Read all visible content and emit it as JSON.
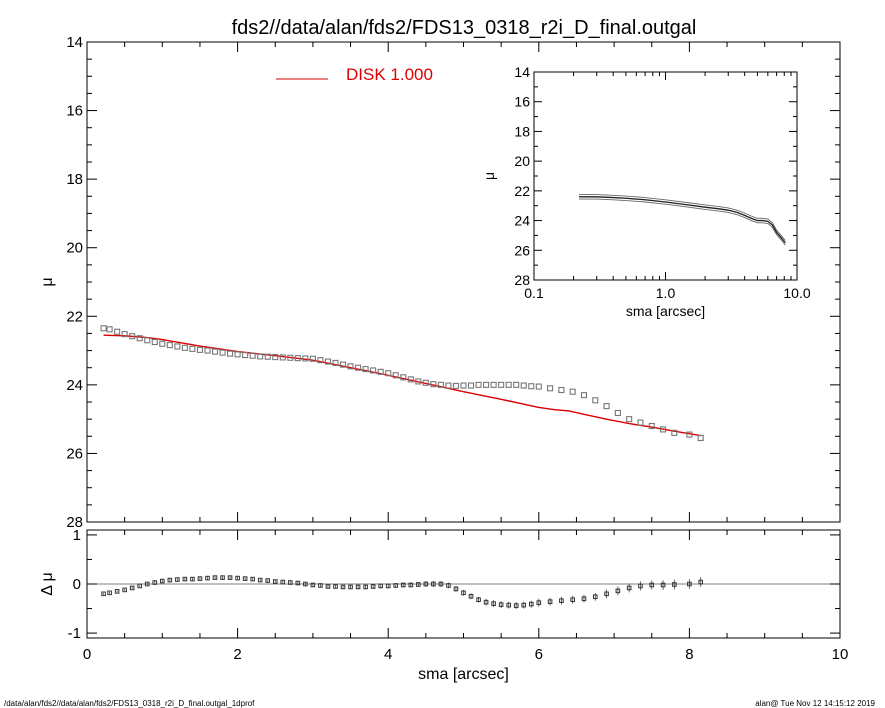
{
  "title": "fds2//data/alan/fds2/FDS13_0318_r2i_D_final.outgal",
  "footer": {
    "left": "/data/alan/fds2//data/alan/fds2/FDS13_0318_r2i_D_final.outgal_1dprof",
    "right": "alan@  Tue Nov 12 14:15:12 2019"
  },
  "colors": {
    "model": "#dd0000",
    "data": "#777777",
    "axes": "#000000"
  },
  "chart_data": [
    {
      "id": "main",
      "type": "scatter",
      "xlabel": "sma [arcsec]",
      "ylabel": "μ",
      "xlim": [
        0,
        10
      ],
      "ylim": [
        28,
        14
      ],
      "y_inverted": true,
      "xticks": [
        "0",
        "2",
        "4",
        "6",
        "8",
        "10"
      ],
      "yticks": [
        "14",
        "16",
        "18",
        "20",
        "22",
        "24",
        "26",
        "28"
      ],
      "legend": {
        "label": "DISK",
        "value": "1.000",
        "placement": "top-center"
      },
      "series": [
        {
          "name": "DISK",
          "style": "line",
          "x": [
            0.22,
            0.5,
            0.8,
            1.0,
            1.5,
            2.0,
            2.5,
            3.0,
            3.5,
            4.0,
            4.5,
            5.0,
            5.5,
            6.0,
            6.2,
            6.4,
            6.6,
            6.9,
            7.2,
            7.5,
            7.8,
            8.15
          ],
          "y": [
            22.55,
            22.57,
            22.62,
            22.68,
            22.87,
            23.03,
            23.15,
            23.28,
            23.5,
            23.72,
            23.96,
            24.2,
            24.42,
            24.66,
            24.72,
            24.76,
            24.86,
            25.0,
            25.13,
            25.23,
            25.35,
            25.48
          ]
        },
        {
          "style": "markers",
          "x": [
            0.22,
            0.3,
            0.4,
            0.5,
            0.6,
            0.7,
            0.8,
            0.9,
            1.0,
            1.1,
            1.2,
            1.3,
            1.4,
            1.5,
            1.6,
            1.7,
            1.8,
            1.9,
            2.0,
            2.1,
            2.2,
            2.3,
            2.4,
            2.5,
            2.6,
            2.7,
            2.8,
            2.9,
            3.0,
            3.1,
            3.2,
            3.3,
            3.4,
            3.5,
            3.6,
            3.7,
            3.8,
            3.9,
            4.0,
            4.1,
            4.2,
            4.3,
            4.4,
            4.5,
            4.6,
            4.7,
            4.8,
            4.9,
            5.0,
            5.1,
            5.2,
            5.3,
            5.4,
            5.5,
            5.6,
            5.7,
            5.8,
            5.9,
            6.0,
            6.15,
            6.3,
            6.45,
            6.6,
            6.75,
            6.9,
            7.05,
            7.2,
            7.35,
            7.5,
            7.65,
            7.8,
            8.0,
            8.15
          ],
          "y": [
            22.35,
            22.38,
            22.45,
            22.52,
            22.58,
            22.64,
            22.7,
            22.75,
            22.8,
            22.84,
            22.88,
            22.92,
            22.95,
            22.98,
            23.0,
            23.03,
            23.06,
            23.09,
            23.11,
            23.13,
            23.15,
            23.17,
            23.18,
            23.19,
            23.2,
            23.21,
            23.22,
            23.23,
            23.24,
            23.28,
            23.32,
            23.36,
            23.41,
            23.46,
            23.5,
            23.54,
            23.58,
            23.62,
            23.66,
            23.72,
            23.78,
            23.84,
            23.9,
            23.94,
            23.98,
            24.0,
            24.02,
            24.03,
            24.02,
            24.02,
            24.0,
            24.0,
            24.0,
            24.0,
            24.0,
            24.0,
            24.02,
            24.04,
            24.05,
            24.1,
            24.15,
            24.2,
            24.3,
            24.45,
            24.62,
            24.82,
            25.0,
            25.1,
            25.2,
            25.3,
            25.4,
            25.45,
            25.55
          ]
        }
      ]
    },
    {
      "id": "residual",
      "type": "scatter",
      "xlabel": "sma [arcsec]",
      "ylabel": "Δ μ",
      "xlim": [
        0,
        10
      ],
      "ylim": [
        -1.1,
        1.1
      ],
      "yticks": [
        "-1",
        "0",
        "1"
      ],
      "series": [
        {
          "style": "markers-errorbars",
          "x": [
            0.22,
            0.3,
            0.4,
            0.5,
            0.6,
            0.7,
            0.8,
            0.9,
            1.0,
            1.1,
            1.2,
            1.3,
            1.4,
            1.5,
            1.6,
            1.7,
            1.8,
            1.9,
            2.0,
            2.1,
            2.2,
            2.3,
            2.4,
            2.5,
            2.6,
            2.7,
            2.8,
            2.9,
            3.0,
            3.1,
            3.2,
            3.3,
            3.4,
            3.5,
            3.6,
            3.7,
            3.8,
            3.9,
            4.0,
            4.1,
            4.2,
            4.3,
            4.4,
            4.5,
            4.6,
            4.7,
            4.8,
            4.9,
            5.0,
            5.1,
            5.2,
            5.3,
            5.4,
            5.5,
            5.6,
            5.7,
            5.8,
            5.9,
            6.0,
            6.15,
            6.3,
            6.45,
            6.6,
            6.75,
            6.9,
            7.05,
            7.2,
            7.35,
            7.5,
            7.65,
            7.8,
            8.0,
            8.15
          ],
          "y": [
            -0.2,
            -0.18,
            -0.15,
            -0.12,
            -0.08,
            -0.04,
            0.0,
            0.03,
            0.06,
            0.08,
            0.09,
            0.1,
            0.1,
            0.11,
            0.12,
            0.13,
            0.13,
            0.13,
            0.12,
            0.11,
            0.1,
            0.08,
            0.07,
            0.05,
            0.04,
            0.03,
            0.02,
            0.0,
            -0.02,
            -0.03,
            -0.05,
            -0.05,
            -0.06,
            -0.06,
            -0.06,
            -0.06,
            -0.05,
            -0.04,
            -0.04,
            -0.03,
            -0.02,
            -0.02,
            -0.01,
            0.0,
            0.0,
            0.0,
            -0.03,
            -0.1,
            -0.18,
            -0.25,
            -0.32,
            -0.37,
            -0.4,
            -0.42,
            -0.43,
            -0.44,
            -0.43,
            -0.41,
            -0.38,
            -0.36,
            -0.34,
            -0.32,
            -0.3,
            -0.26,
            -0.2,
            -0.14,
            -0.08,
            -0.04,
            -0.02,
            -0.02,
            -0.01,
            0.0,
            0.04
          ],
          "err": [
            0.02,
            0.02,
            0.02,
            0.02,
            0.02,
            0.02,
            0.02,
            0.03,
            0.03,
            0.03,
            0.03,
            0.03,
            0.03,
            0.03,
            0.03,
            0.03,
            0.03,
            0.03,
            0.03,
            0.03,
            0.03,
            0.03,
            0.03,
            0.04,
            0.04,
            0.04,
            0.04,
            0.04,
            0.04,
            0.04,
            0.04,
            0.04,
            0.04,
            0.04,
            0.05,
            0.05,
            0.05,
            0.05,
            0.05,
            0.05,
            0.05,
            0.05,
            0.05,
            0.06,
            0.06,
            0.06,
            0.06,
            0.06,
            0.06,
            0.06,
            0.06,
            0.07,
            0.07,
            0.07,
            0.07,
            0.07,
            0.07,
            0.07,
            0.08,
            0.08,
            0.08,
            0.08,
            0.08,
            0.08,
            0.09,
            0.09,
            0.09,
            0.09,
            0.09,
            0.1,
            0.1,
            0.1,
            0.1
          ]
        }
      ]
    },
    {
      "id": "inset",
      "type": "line",
      "xlabel": "sma [arcsec]",
      "ylabel": "μ",
      "xscale": "log",
      "xlim": [
        0.1,
        10
      ],
      "ylim": [
        28,
        14
      ],
      "y_inverted": true,
      "xticks": [
        "0.1",
        "1.0",
        "10.0"
      ],
      "yticks": [
        "14",
        "16",
        "18",
        "20",
        "22",
        "24",
        "26",
        "28"
      ],
      "series": [
        {
          "style": "line",
          "x": [
            0.22,
            0.3,
            0.4,
            0.5,
            0.7,
            1.0,
            1.5,
            2.0,
            2.5,
            3.0,
            3.5,
            4.0,
            4.5,
            5.0,
            5.5,
            6.0,
            6.5,
            7.0,
            7.5,
            8.15
          ],
          "y": [
            22.4,
            22.4,
            22.45,
            22.5,
            22.6,
            22.75,
            22.95,
            23.1,
            23.2,
            23.3,
            23.45,
            23.65,
            23.85,
            24.0,
            24.0,
            24.05,
            24.3,
            24.8,
            25.1,
            25.5
          ]
        }
      ]
    }
  ]
}
